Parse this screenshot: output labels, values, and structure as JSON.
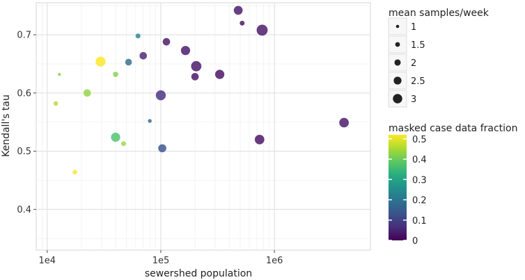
{
  "chart_data": {
    "type": "scatter",
    "xscale": "log",
    "xlabel": "sewershed population",
    "ylabel": "Kendall's tau",
    "xlim": [
      8000,
      7000000
    ],
    "ylim": [
      0.33,
      0.755
    ],
    "x_ticks": [
      {
        "value": 10000,
        "label": "1e4"
      },
      {
        "value": 100000,
        "label": "1e5"
      },
      {
        "value": 1000000,
        "label": "1e6"
      }
    ],
    "y_ticks": [
      {
        "value": 0.4,
        "label": "0.4"
      },
      {
        "value": 0.5,
        "label": "0.5"
      },
      {
        "value": 0.6,
        "label": "0.6"
      },
      {
        "value": 0.7,
        "label": "0.7"
      }
    ],
    "size_legend": {
      "title": "mean samples/week",
      "levels": [
        {
          "value": 1,
          "label": "1"
        },
        {
          "value": 1.5,
          "label": "1.5"
        },
        {
          "value": 2,
          "label": "2"
        },
        {
          "value": 2.5,
          "label": "2.5"
        },
        {
          "value": 3,
          "label": "3"
        }
      ]
    },
    "color_legend": {
      "title": "masked case data fraction",
      "range": [
        0,
        0.52
      ],
      "ticks": [
        {
          "value": 0.5,
          "label": "0.5"
        },
        {
          "value": 0.4,
          "label": "0.4"
        },
        {
          "value": 0.3,
          "label": "0.3"
        },
        {
          "value": 0.2,
          "label": "0.2"
        },
        {
          "value": 0.1,
          "label": "0.1"
        },
        {
          "value": 0,
          "label": "0"
        }
      ]
    },
    "points": [
      {
        "x": 12800,
        "y": 0.632,
        "samples": 0.8,
        "fraction": 0.42
      },
      {
        "x": 11900,
        "y": 0.582,
        "samples": 1.2,
        "fraction": 0.46
      },
      {
        "x": 17500,
        "y": 0.464,
        "samples": 1.2,
        "fraction": 0.51
      },
      {
        "x": 22500,
        "y": 0.6,
        "samples": 2.0,
        "fraction": 0.43
      },
      {
        "x": 29500,
        "y": 0.654,
        "samples": 2.7,
        "fraction": 0.52
      },
      {
        "x": 40000,
        "y": 0.632,
        "samples": 1.4,
        "fraction": 0.42
      },
      {
        "x": 40000,
        "y": 0.524,
        "samples": 2.5,
        "fraction": 0.37
      },
      {
        "x": 47000,
        "y": 0.513,
        "samples": 1.3,
        "fraction": 0.44
      },
      {
        "x": 52000,
        "y": 0.653,
        "samples": 1.8,
        "fraction": 0.18
      },
      {
        "x": 63000,
        "y": 0.698,
        "samples": 1.3,
        "fraction": 0.24
      },
      {
        "x": 70000,
        "y": 0.664,
        "samples": 2.0,
        "fraction": 0.05
      },
      {
        "x": 80000,
        "y": 0.552,
        "samples": 1.0,
        "fraction": 0.17
      },
      {
        "x": 100000,
        "y": 0.596,
        "samples": 2.7,
        "fraction": 0.07
      },
      {
        "x": 103000,
        "y": 0.505,
        "samples": 2.2,
        "fraction": 0.13
      },
      {
        "x": 112000,
        "y": 0.688,
        "samples": 2.0,
        "fraction": 0.03
      },
      {
        "x": 165000,
        "y": 0.673,
        "samples": 2.5,
        "fraction": 0.03
      },
      {
        "x": 200000,
        "y": 0.628,
        "samples": 2.0,
        "fraction": 0.02
      },
      {
        "x": 205000,
        "y": 0.646,
        "samples": 2.8,
        "fraction": 0.03
      },
      {
        "x": 330000,
        "y": 0.632,
        "samples": 2.5,
        "fraction": 0.02
      },
      {
        "x": 480000,
        "y": 0.742,
        "samples": 2.4,
        "fraction": 0.03
      },
      {
        "x": 520000,
        "y": 0.72,
        "samples": 1.3,
        "fraction": 0.02
      },
      {
        "x": 740000,
        "y": 0.52,
        "samples": 2.6,
        "fraction": 0.02
      },
      {
        "x": 780000,
        "y": 0.708,
        "samples": 3.0,
        "fraction": 0.03
      },
      {
        "x": 4100000,
        "y": 0.549,
        "samples": 2.6,
        "fraction": 0.03
      }
    ]
  }
}
